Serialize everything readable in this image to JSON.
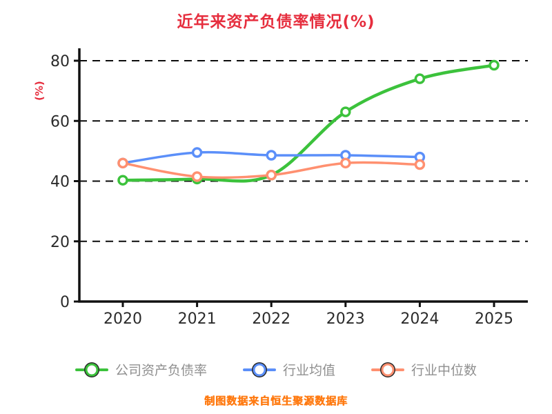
{
  "chart_data": {
    "type": "line",
    "title": "近年来资产负债率情况(%)",
    "ylabel": "(%)",
    "footer": "制图数据来自恒生聚源数据库",
    "categories": [
      "2020",
      "2021",
      "2022",
      "2023",
      "2024",
      "2025"
    ],
    "yticks": [
      0,
      20,
      40,
      60,
      80
    ],
    "ylim": [
      0,
      80
    ],
    "grid": "horizontal-dashed",
    "legend_position": "bottom",
    "axis_color": "#111111",
    "tick_label_color": "#2b2b2b",
    "ylabel_color": "#e62e3e",
    "series": [
      {
        "name": "公司资产负债率",
        "color": "#3cc23c",
        "line_width": 4.5,
        "values": [
          40.3,
          40.7,
          42.0,
          63.0,
          74.0,
          78.5
        ]
      },
      {
        "name": "行业均值",
        "color": "#5b8ff9",
        "line_width": 3.5,
        "values": [
          46.0,
          49.5,
          48.6,
          48.6,
          48.0,
          null
        ]
      },
      {
        "name": "行业中位数",
        "color": "#ff9070",
        "line_width": 3.5,
        "values": [
          46.0,
          41.5,
          42.0,
          46.0,
          45.5,
          null
        ]
      }
    ]
  }
}
